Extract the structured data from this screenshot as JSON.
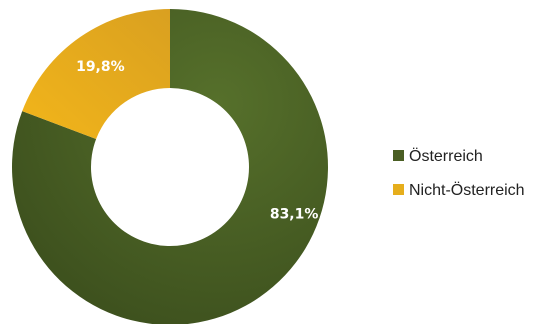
{
  "chart_data": {
    "type": "pie",
    "variant": "donut",
    "title": "",
    "categories": [
      "Österreich",
      "Nicht-Österreich"
    ],
    "values": [
      83.1,
      19.8
    ],
    "labels": [
      "83,1%",
      "19,8%"
    ],
    "colors": [
      "#4a5e23",
      "#e6ae1c"
    ],
    "legend_position": "right",
    "legend": [
      {
        "name": "Österreich",
        "color": "#4a5e23"
      },
      {
        "name": "Nicht-Österreich",
        "color": "#e6ae1c"
      }
    ]
  }
}
